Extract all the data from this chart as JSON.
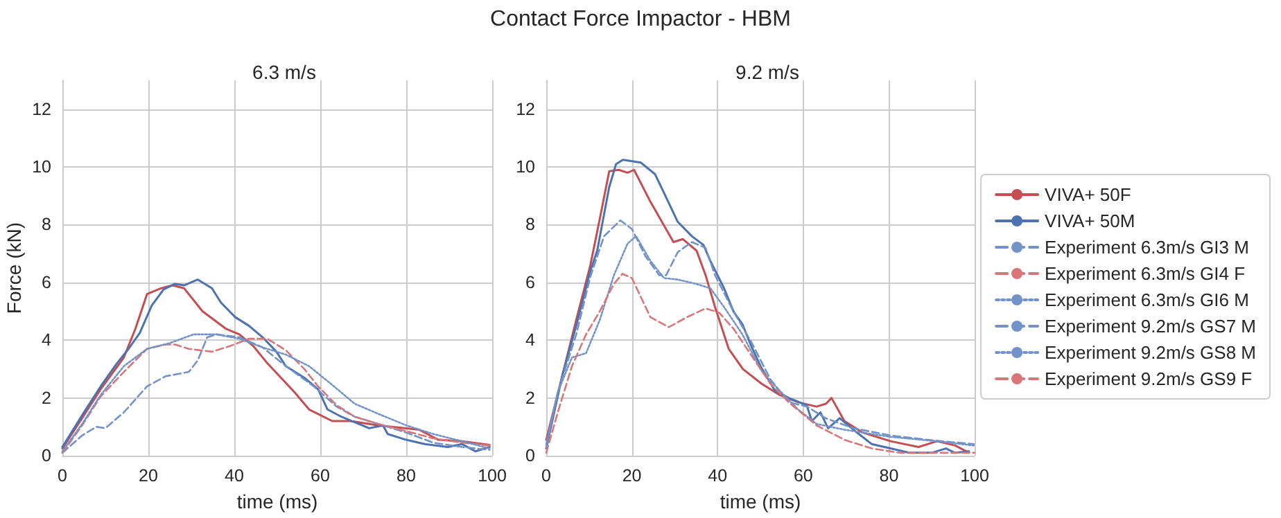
{
  "chart_data": [
    {
      "type": "line",
      "title": "6.3 m/s",
      "xlabel": "time (ms)",
      "ylabel": "Force (kN)",
      "annotations": [
        "Contact Force Impactor - HBM"
      ],
      "xlim": [
        0,
        100
      ],
      "ylim": [
        0,
        13
      ],
      "xticks": [
        0,
        20,
        40,
        60,
        80,
        100
      ],
      "yticks": [
        0,
        2,
        4,
        6,
        8,
        10,
        12
      ],
      "grid": true,
      "legend": "right",
      "marker": "none",
      "series": [
        {
          "name": "VIVA+ 50F",
          "color": "#c44e52",
          "line_style": "solid",
          "x": [
            0,
            4.6,
            8.9,
            14.3,
            17,
            19.7,
            23,
            25.6,
            28.3,
            32.6,
            38,
            41.2,
            44.4,
            47.7,
            54,
            57.4,
            62.8,
            67,
            73.5,
            80,
            83,
            87.5,
            93,
            99.4
          ],
          "values": [
            0.25,
            1.3,
            2.3,
            3.4,
            4.4,
            5.6,
            5.8,
            5.9,
            5.8,
            5.0,
            4.4,
            4.2,
            3.8,
            3.2,
            2.2,
            1.6,
            1.2,
            1.2,
            1.05,
            0.95,
            0.9,
            0.55,
            0.5,
            0.37
          ]
        },
        {
          "name": "VIVA+ 50M",
          "color": "#4c72b0",
          "line_style": "solid",
          "x": [
            0,
            4.6,
            8.9,
            12.7,
            15.4,
            18,
            20.8,
            23.5,
            26.2,
            28.3,
            31.5,
            34.8,
            36.9,
            40.2,
            43.4,
            46.6,
            49.8,
            52,
            56.3,
            59.5,
            61.7,
            64.9,
            71.4,
            74.6,
            75.7,
            80,
            84.3,
            89.7,
            93,
            96.1,
            99.4
          ],
          "values": [
            0.3,
            1.4,
            2.4,
            3.2,
            3.7,
            4.25,
            5.2,
            5.75,
            5.95,
            5.9,
            6.1,
            5.8,
            5.3,
            4.8,
            4.5,
            4.1,
            3.6,
            3.1,
            2.7,
            2.3,
            1.6,
            1.35,
            0.95,
            1.05,
            0.75,
            0.55,
            0.4,
            0.3,
            0.4,
            0.15,
            0.3
          ]
        },
        {
          "name": "Experiment 6.3m/s GI3 M",
          "color": "#7393c8",
          "line_style": "dashed",
          "x": [
            0,
            4.6,
            7.9,
            10,
            14.3,
            19.7,
            24,
            29.4,
            31.5,
            33.7,
            35.9,
            41.2,
            46.6,
            52,
            58.5,
            63.8,
            68,
            73.5,
            80,
            86.3,
            93,
            99.4
          ],
          "values": [
            0.1,
            0.7,
            1.0,
            0.95,
            1.5,
            2.4,
            2.75,
            2.9,
            3.3,
            4.1,
            4.2,
            4.1,
            3.75,
            3.1,
            2.4,
            1.7,
            1.35,
            1.1,
            0.8,
            0.45,
            0.3,
            0.2
          ]
        },
        {
          "name": "Experiment 6.3m/s GI4 F",
          "color": "#d8777b",
          "line_style": "dashed",
          "x": [
            0,
            4.6,
            8.9,
            14.3,
            19.7,
            24,
            26.2,
            29.4,
            34.8,
            39.1,
            43.4,
            47.7,
            52,
            56.3,
            59.5,
            63.8,
            68,
            73.5,
            80,
            86.3,
            93,
            99.4
          ],
          "values": [
            0.1,
            1.05,
            2.05,
            2.9,
            3.7,
            3.85,
            3.85,
            3.7,
            3.6,
            3.8,
            4.05,
            4.05,
            3.65,
            3.0,
            2.4,
            1.75,
            1.35,
            1.1,
            0.85,
            0.6,
            0.45,
            0.35
          ]
        },
        {
          "name": "Experiment 6.3m/s GI6 M",
          "color": "#7393c8",
          "line_style": "dotted",
          "x": [
            0,
            4.6,
            8.9,
            14.3,
            19.7,
            25,
            30.5,
            35.9,
            41.2,
            46.6,
            52,
            57.4,
            62.8,
            68,
            73.5,
            80,
            86.3,
            93,
            99.4
          ],
          "values": [
            0.15,
            1.1,
            2.1,
            3.1,
            3.7,
            3.9,
            4.2,
            4.2,
            4.05,
            3.75,
            3.5,
            3.1,
            2.45,
            1.8,
            1.45,
            1.05,
            0.75,
            0.5,
            0.25
          ]
        }
      ]
    },
    {
      "type": "line",
      "title": "9.2 m/s",
      "xlabel": "time (ms)",
      "xlim": [
        0,
        100
      ],
      "ylim": [
        0,
        13
      ],
      "xticks": [
        0,
        20,
        40,
        60,
        80,
        100
      ],
      "yticks": [
        0,
        2,
        4,
        6,
        8,
        10,
        12
      ],
      "grid": true,
      "legend": "right",
      "marker": "none",
      "series": [
        {
          "name": "VIVA+ 50F",
          "color": "#c44e52",
          "line_style": "solid",
          "x": [
            0,
            3.8,
            7,
            10.3,
            12.5,
            14.7,
            16.9,
            19,
            20.5,
            24.3,
            29.7,
            31.9,
            35.1,
            37.2,
            39.4,
            42.6,
            45.9,
            50.2,
            54.5,
            58.8,
            63.1,
            65.3,
            66.6,
            69.6,
            73.9,
            80.4,
            86.9,
            91.2,
            95.5,
            98.7
          ],
          "values": [
            0.55,
            2.8,
            4.7,
            6.6,
            8.2,
            9.85,
            9.9,
            9.8,
            9.9,
            8.8,
            7.4,
            7.5,
            7.1,
            6.25,
            5.15,
            3.7,
            3.0,
            2.5,
            2.1,
            1.85,
            1.7,
            1.8,
            2.0,
            1.2,
            0.8,
            0.5,
            0.3,
            0.5,
            0.35,
            0.1
          ]
        },
        {
          "name": "VIVA+ 50M",
          "color": "#4c72b0",
          "line_style": "solid",
          "x": [
            0,
            3.8,
            7,
            10.3,
            11.9,
            14.7,
            16.3,
            17.9,
            20,
            22.1,
            25.4,
            27.5,
            30.7,
            34,
            36.7,
            38.3,
            41.5,
            43.7,
            45.8,
            48,
            50.2,
            53.4,
            56.6,
            60.8,
            62,
            64,
            65.8,
            68.5,
            71.7,
            76,
            80.4,
            84.7,
            90,
            93.3,
            95.4,
            98.7
          ],
          "values": [
            0.25,
            2.8,
            4.5,
            6.4,
            7.1,
            9.3,
            10.1,
            10.25,
            10.2,
            10.15,
            9.75,
            9.1,
            8.1,
            7.6,
            7.3,
            6.75,
            5.8,
            5.0,
            4.55,
            3.75,
            3.05,
            2.25,
            2.0,
            1.75,
            1.2,
            1.5,
            0.95,
            1.3,
            0.9,
            0.4,
            0.25,
            0.1,
            0.1,
            0.25,
            0.1,
            0.15
          ]
        },
        {
          "name": "Experiment 9.2m/s GS7 M",
          "color": "#7393c8",
          "line_style": "dashed",
          "x": [
            0,
            2.7,
            7,
            10.3,
            13.5,
            17.3,
            20,
            23.2,
            26.4,
            28,
            30.7,
            34,
            37.2,
            39.4,
            43.7,
            48,
            52.3,
            56.6,
            60.9,
            65.2,
            71.7,
            80.4,
            89,
            99.8
          ],
          "values": [
            0.4,
            2.2,
            4.2,
            6.2,
            7.6,
            8.15,
            7.85,
            6.9,
            6.25,
            6.25,
            7.05,
            7.4,
            7.2,
            6.25,
            5.0,
            3.9,
            2.65,
            1.85,
            1.7,
            1.3,
            0.95,
            0.7,
            0.55,
            0.4
          ]
        },
        {
          "name": "Experiment 9.2m/s GS8 M",
          "color": "#7393c8",
          "line_style": "dotted",
          "x": [
            0,
            2.7,
            6,
            9.3,
            12.5,
            15.8,
            19,
            21,
            24.3,
            27.5,
            30.7,
            35,
            38.3,
            41.5,
            45.8,
            50.2,
            54.5,
            58.8,
            63.1,
            69.6,
            80.4,
            91.2,
            99.8
          ],
          "values": [
            0.3,
            2.2,
            3.4,
            3.55,
            4.7,
            6.25,
            7.35,
            7.6,
            6.75,
            6.15,
            6.1,
            5.95,
            5.8,
            5.15,
            4.2,
            2.95,
            2.25,
            1.6,
            1.1,
            0.9,
            0.65,
            0.5,
            0.35
          ]
        },
        {
          "name": "Experiment 9.2m/s GS9 F",
          "color": "#d8777b",
          "line_style": "dashed",
          "x": [
            0,
            2.7,
            6,
            9.3,
            12.5,
            15.8,
            17.8,
            20,
            24.3,
            28.6,
            32.9,
            37.2,
            40.4,
            43.7,
            48,
            52.3,
            56.6,
            63.1,
            69.6,
            76,
            82.5,
            91.2,
            100
          ],
          "values": [
            0.1,
            1.5,
            3.1,
            4.2,
            5.0,
            5.95,
            6.3,
            6.15,
            4.8,
            4.45,
            4.8,
            5.1,
            4.95,
            4.4,
            3.45,
            2.5,
            1.85,
            1.05,
            0.55,
            0.25,
            0.1,
            0.1,
            0.1
          ]
        }
      ]
    }
  ]
}
